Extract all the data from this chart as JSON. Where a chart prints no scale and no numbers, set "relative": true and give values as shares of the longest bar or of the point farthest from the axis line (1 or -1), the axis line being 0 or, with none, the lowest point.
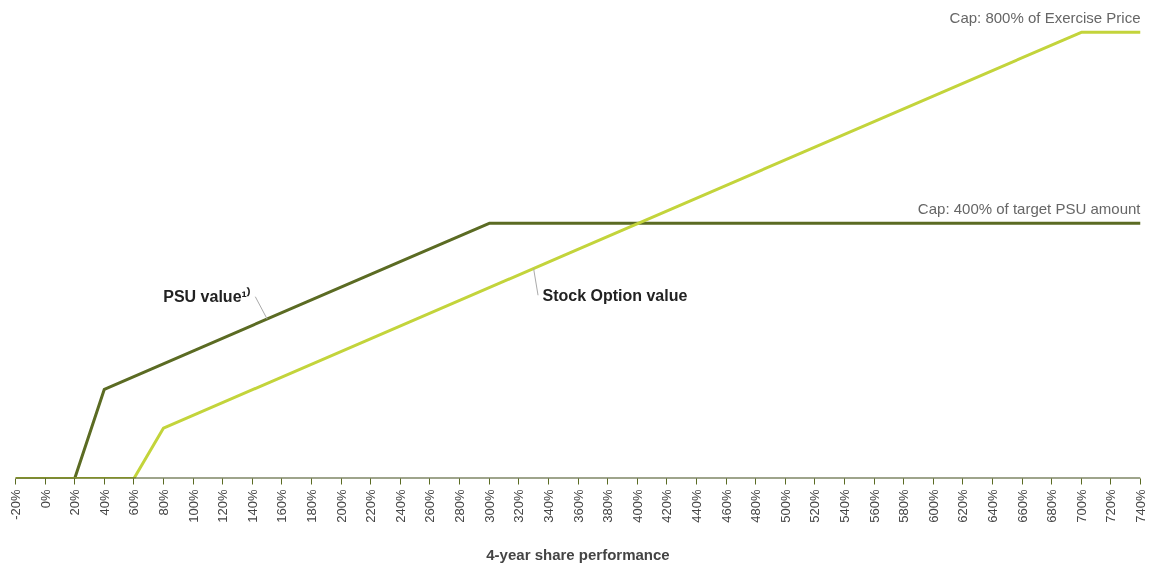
{
  "chart_data": {
    "type": "line",
    "relative": true,
    "xlabel": "4-year share performance",
    "xlim": [
      -20,
      740
    ],
    "xticks": [
      {
        "value": -20,
        "label": "-20%"
      },
      {
        "value": 0,
        "label": "0%"
      },
      {
        "value": 20,
        "label": "20%"
      },
      {
        "value": 40,
        "label": "40%"
      },
      {
        "value": 60,
        "label": "60%"
      },
      {
        "value": 80,
        "label": "80%"
      },
      {
        "value": 100,
        "label": "100%"
      },
      {
        "value": 120,
        "label": "120%"
      },
      {
        "value": 140,
        "label": "140%"
      },
      {
        "value": 160,
        "label": "160%"
      },
      {
        "value": 180,
        "label": "180%"
      },
      {
        "value": 200,
        "label": "200%"
      },
      {
        "value": 220,
        "label": "220%"
      },
      {
        "value": 240,
        "label": "240%"
      },
      {
        "value": 260,
        "label": "260%"
      },
      {
        "value": 280,
        "label": "280%"
      },
      {
        "value": 300,
        "label": "300%"
      },
      {
        "value": 320,
        "label": "320%"
      },
      {
        "value": 340,
        "label": "340%"
      },
      {
        "value": 360,
        "label": "360%"
      },
      {
        "value": 380,
        "label": "380%"
      },
      {
        "value": 400,
        "label": "400%"
      },
      {
        "value": 420,
        "label": "420%"
      },
      {
        "value": 440,
        "label": "440%"
      },
      {
        "value": 460,
        "label": "460%"
      },
      {
        "value": 480,
        "label": "480%"
      },
      {
        "value": 500,
        "label": "500%"
      },
      {
        "value": 520,
        "label": "520%"
      },
      {
        "value": 540,
        "label": "540%"
      },
      {
        "value": 560,
        "label": "560%"
      },
      {
        "value": 580,
        "label": "580%"
      },
      {
        "value": 600,
        "label": "600%"
      },
      {
        "value": 620,
        "label": "620%"
      },
      {
        "value": 640,
        "label": "640%"
      },
      {
        "value": 660,
        "label": "660%"
      },
      {
        "value": 680,
        "label": "680%"
      },
      {
        "value": 700,
        "label": "700%"
      },
      {
        "value": 720,
        "label": "720%"
      },
      {
        "value": 740,
        "label": "740%"
      }
    ],
    "series": [
      {
        "name": "PSU value¹⁾",
        "color": "#5b6b23",
        "x": [
          -20,
          20,
          40,
          300,
          740
        ],
        "values": [
          0,
          0,
          0.2,
          0.572,
          0.572
        ]
      },
      {
        "name": "Stock Option value",
        "color": "#c3d43b",
        "x": [
          -20,
          60,
          80,
          700,
          740
        ],
        "values": [
          0,
          0,
          0.113,
          1,
          1
        ]
      }
    ],
    "annotations": [
      "Cap: 800% of Exercise Price",
      "Cap: 400% of target PSU amount"
    ],
    "grid": false,
    "legend": false,
    "marker": "none",
    "line_style": "solid",
    "tick_labels": "x"
  }
}
